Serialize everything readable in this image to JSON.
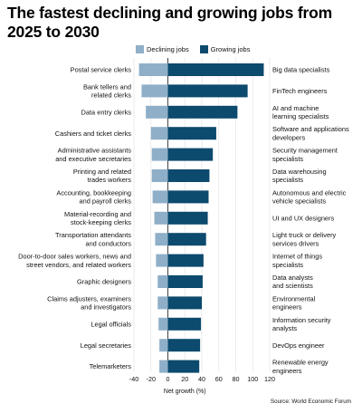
{
  "title": "The fastest declining and growing jobs from 2025 to 2030",
  "legend": [
    {
      "label": "Declining jobs",
      "color": "#8fafc8"
    },
    {
      "label": "Growing jobs",
      "color": "#0c4a6e"
    }
  ],
  "source": "Source: World Economic Forum",
  "chart_data": {
    "type": "bar",
    "orientation": "horizontal",
    "title": "The fastest declining and growing jobs from 2025 to 2030",
    "xlabel": "Net growth (%)",
    "xlim": [
      -40,
      120
    ],
    "xticks": [
      -40,
      -20,
      0,
      20,
      40,
      60,
      80,
      100,
      120
    ],
    "grid": true,
    "legend_position": "top",
    "series": [
      {
        "name": "Declining jobs",
        "color": "#8fafc8",
        "categories": [
          [
            "Postal service clerks"
          ],
          [
            "Bank tellers and",
            "related clerks"
          ],
          [
            "Data entry clerks"
          ],
          [
            "Cashiers and ticket clerks"
          ],
          [
            "Administrative assistants",
            "and executive secretaries"
          ],
          [
            "Printing and related",
            "trades workers"
          ],
          [
            "Accounting, bookkeeping",
            "and payroll clerks"
          ],
          [
            "Material-recording and",
            "stock-keeping clerks"
          ],
          [
            "Transportation attendants",
            "and conductors"
          ],
          [
            "Door-to-door sales workers, news and",
            "street vendors, and related workers"
          ],
          [
            "Graphic designers"
          ],
          [
            "Claims adjusters, examiners",
            "and investigators"
          ],
          [
            "Legal officials"
          ],
          [
            "Legal secretaries"
          ],
          [
            "Telemarketers"
          ]
        ],
        "values": [
          -34,
          -31,
          -26,
          -20,
          -19,
          -19,
          -18,
          -16,
          -15,
          -14,
          -12,
          -12,
          -11,
          -10,
          -10
        ]
      },
      {
        "name": "Growing jobs",
        "color": "#0c4a6e",
        "categories": [
          [
            "Big data specialists"
          ],
          [
            "FinTech engineers"
          ],
          [
            "AI and machine",
            "learning specialists"
          ],
          [
            "Software and applications",
            "developers"
          ],
          [
            "Security management",
            "specialists"
          ],
          [
            "Data warehousing",
            "specialists"
          ],
          [
            "Autonomous and electric",
            "vehicle specialists"
          ],
          [
            "UI and UX designers"
          ],
          [
            "Light truck or delivery",
            "services drivers"
          ],
          [
            "Internet of things",
            "specialists"
          ],
          [
            "Data analysts",
            "and scientists"
          ],
          [
            "Environmental",
            "engineers"
          ],
          [
            "Information security",
            "analysts"
          ],
          [
            "DevOps engineer"
          ],
          [
            "Renewable energy",
            "engineers"
          ]
        ],
        "values": [
          113,
          94,
          82,
          57,
          53,
          49,
          48,
          47,
          45,
          42,
          41,
          40,
          39,
          38,
          37
        ]
      }
    ]
  }
}
